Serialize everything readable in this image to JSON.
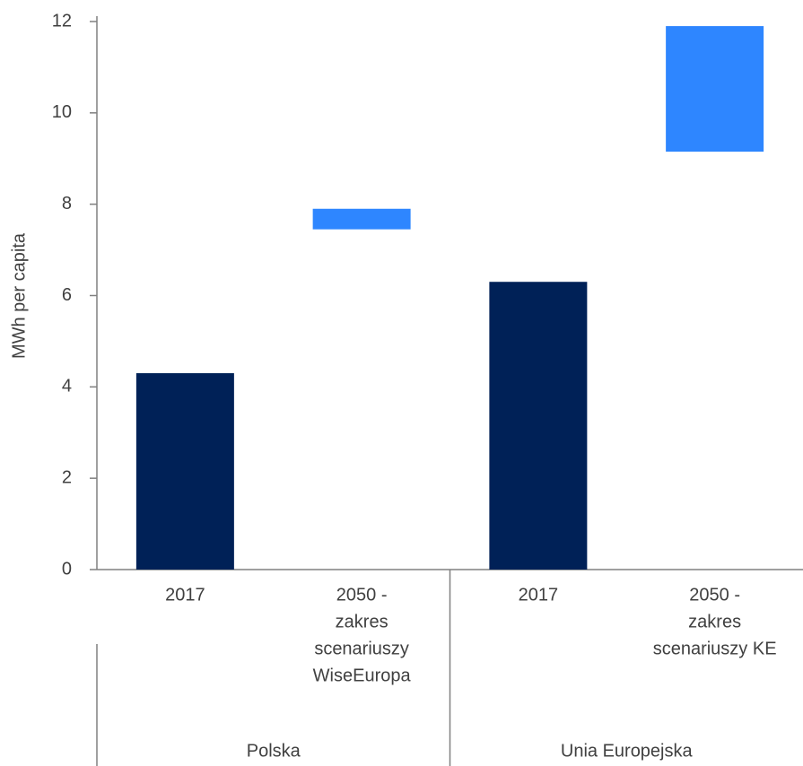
{
  "chart_data": {
    "type": "floating-bar",
    "y_label": "MWh per capita",
    "categories": [
      [
        "2017"
      ],
      [
        "2050 -",
        "zakres",
        "scenariuszy",
        "WiseEuropa"
      ],
      [
        "2017"
      ],
      [
        "2050 -",
        "zakres",
        "scenariuszy KE"
      ]
    ],
    "groups": [
      "Polska",
      "Unia Europejska"
    ],
    "values": [
      4.3,
      7.9,
      6.3,
      11.9
    ],
    "low": [
      null,
      7.45,
      null,
      9.15
    ],
    "colors": [
      "#002157",
      "#2e86ff",
      "#002157",
      "#2e86ff"
    ],
    "ylim": [
      0,
      12
    ],
    "yticks": [
      0,
      2,
      4,
      6,
      8,
      10,
      12
    ],
    "grid": false
  }
}
